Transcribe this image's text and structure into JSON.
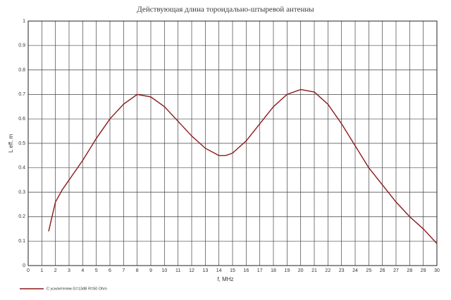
{
  "chart_data": {
    "type": "line",
    "title": "Действующая длина тороидально-штыревой антенны",
    "x_label": "f, MHz",
    "y_label": "L eff, m",
    "x": [
      1.5,
      2,
      2.5,
      3,
      4,
      5,
      6,
      7,
      8,
      9,
      10,
      11,
      12,
      13,
      14,
      14.5,
      15,
      16,
      17,
      18,
      19,
      20,
      21,
      22,
      23,
      24,
      25,
      26,
      27,
      28,
      29,
      30
    ],
    "series": [
      {
        "name": "С усилителем G=13dB R=50 Ohm",
        "color": "#8b1a1a",
        "values": [
          0.14,
          0.26,
          0.31,
          0.35,
          0.43,
          0.52,
          0.6,
          0.66,
          0.7,
          0.69,
          0.65,
          0.59,
          0.53,
          0.48,
          0.45,
          0.45,
          0.46,
          0.51,
          0.58,
          0.65,
          0.7,
          0.72,
          0.71,
          0.66,
          0.58,
          0.49,
          0.4,
          0.33,
          0.26,
          0.2,
          0.15,
          0.09
        ]
      }
    ],
    "xlim": [
      0,
      30
    ],
    "ylim": [
      0,
      1
    ],
    "xticks": [
      0,
      1,
      2,
      3,
      4,
      5,
      6,
      7,
      8,
      9,
      10,
      11,
      12,
      13,
      14,
      15,
      16,
      17,
      18,
      19,
      20,
      21,
      22,
      23,
      24,
      25,
      26,
      27,
      28,
      29,
      30
    ],
    "yticks": [
      0,
      0.1,
      0.2,
      0.3,
      0.4,
      0.5,
      0.6,
      0.7,
      0.8,
      0.9,
      1
    ],
    "grid": true,
    "legend": "bottom-left"
  }
}
